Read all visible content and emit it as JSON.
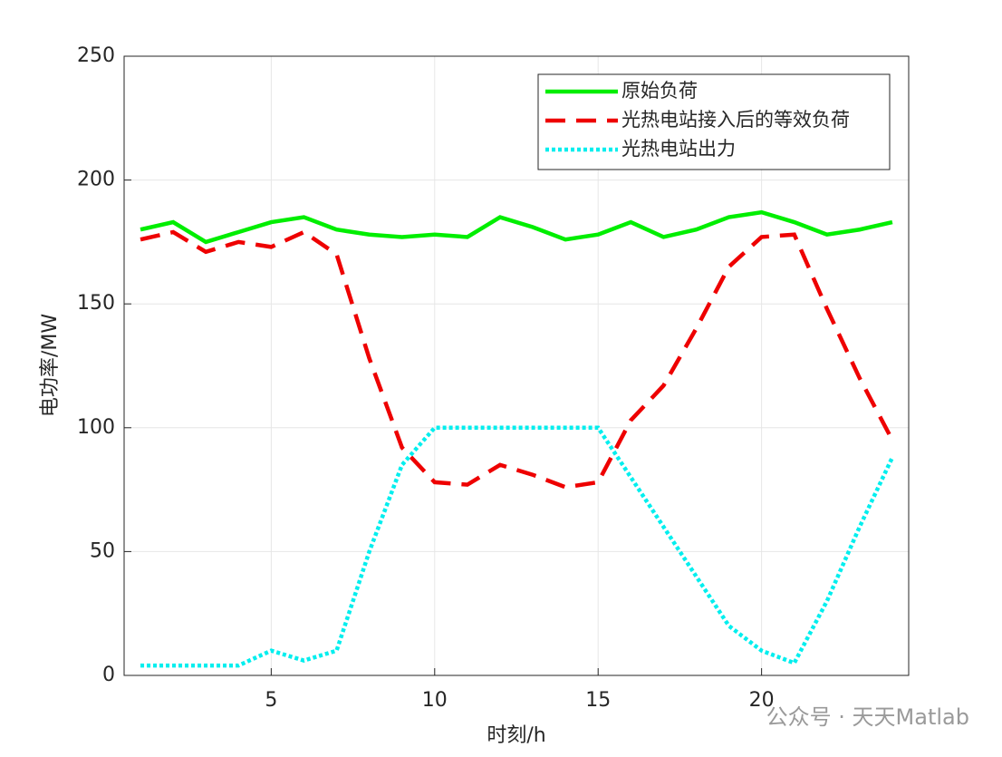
{
  "chart_data": {
    "type": "line",
    "x_label": "时刻/h",
    "y_label": "电功率/MW",
    "x": [
      1,
      2,
      3,
      4,
      5,
      6,
      7,
      8,
      9,
      10,
      11,
      12,
      13,
      14,
      15,
      16,
      17,
      18,
      19,
      20,
      21,
      22,
      23,
      24
    ],
    "series": [
      {
        "name": "原始负荷",
        "color": "#00ee00",
        "style": "solid",
        "values": [
          180,
          183,
          175,
          179,
          183,
          185,
          180,
          178,
          177,
          178,
          177,
          185,
          181,
          176,
          178,
          183,
          177,
          180,
          185,
          187,
          183,
          178,
          180,
          183
        ]
      },
      {
        "name": "光热电站接入后的等效负荷",
        "color": "#ee0000",
        "style": "dashed",
        "values": [
          176,
          179,
          171,
          175,
          173,
          179,
          170,
          128,
          92,
          78,
          77,
          85,
          81,
          76,
          78,
          103,
          117,
          140,
          165,
          177,
          178,
          148,
          120,
          95
        ]
      },
      {
        "name": "光热电站出力",
        "color": "#00eeee",
        "style": "dotted",
        "values": [
          4,
          4,
          4,
          4,
          10,
          6,
          10,
          50,
          85,
          100,
          100,
          100,
          100,
          100,
          100,
          80,
          60,
          40,
          20,
          10,
          5,
          30,
          60,
          88
        ]
      }
    ],
    "xlim": [
      0.5,
      24.5
    ],
    "xticks": [
      5,
      10,
      15,
      20
    ],
    "ylim": [
      0,
      250
    ],
    "yticks": [
      0,
      50,
      100,
      150,
      200,
      250
    ],
    "grid": true,
    "legend": "upper right",
    "watermark": "公众号 · 天天Matlab"
  }
}
